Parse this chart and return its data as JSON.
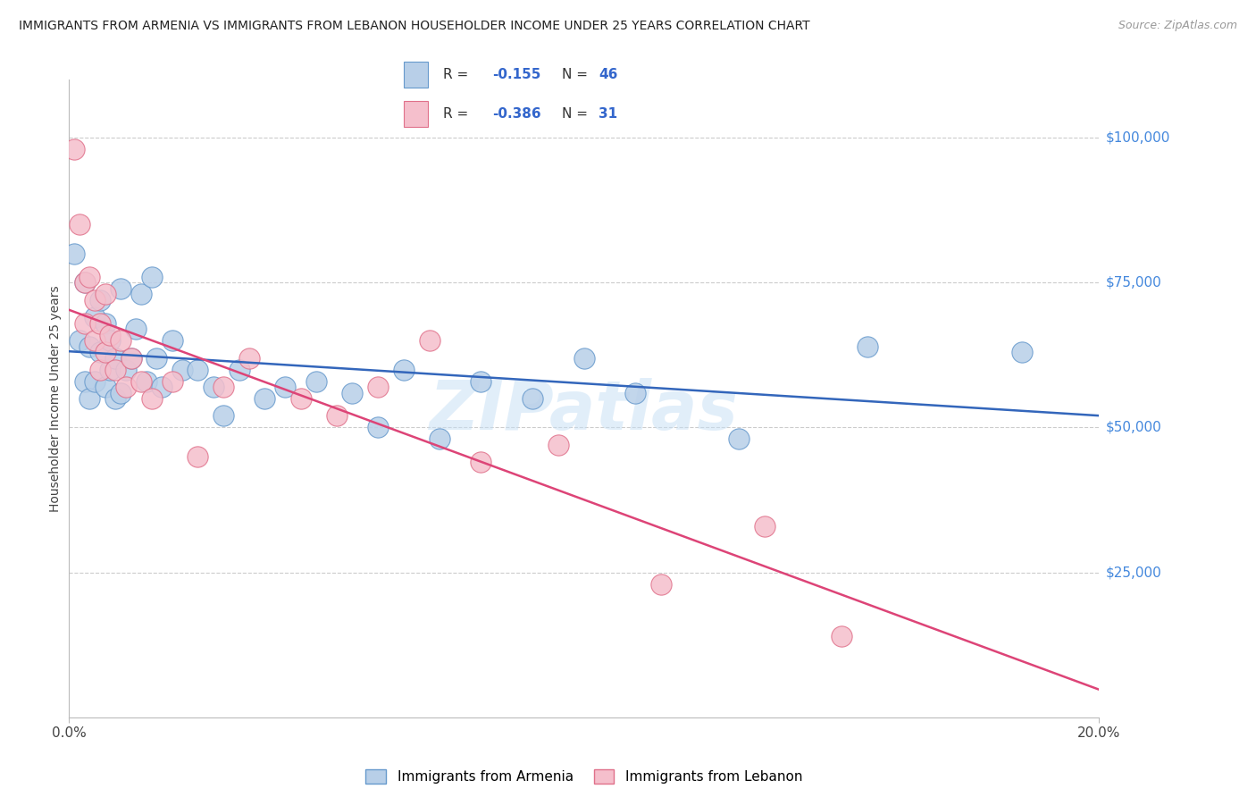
{
  "title": "IMMIGRANTS FROM ARMENIA VS IMMIGRANTS FROM LEBANON HOUSEHOLDER INCOME UNDER 25 YEARS CORRELATION CHART",
  "source": "Source: ZipAtlas.com",
  "ylabel": "Householder Income Under 25 years",
  "xlim": [
    0.0,
    0.2
  ],
  "ylim": [
    0,
    110000
  ],
  "yticks": [
    0,
    25000,
    50000,
    75000,
    100000
  ],
  "ytick_labels": [
    "",
    "$25,000",
    "$50,000",
    "$75,000",
    "$100,000"
  ],
  "background_color": "#ffffff",
  "grid_color": "#cccccc",
  "armenia_color": "#b8cfe8",
  "armenia_edge_color": "#6699cc",
  "lebanon_color": "#f5bfcc",
  "lebanon_edge_color": "#e0708a",
  "armenia_R": -0.155,
  "armenia_N": 46,
  "lebanon_R": -0.386,
  "lebanon_N": 31,
  "armenia_line_color": "#3366bb",
  "lebanon_line_color": "#dd4477",
  "armenia_x": [
    0.001,
    0.002,
    0.003,
    0.003,
    0.004,
    0.004,
    0.005,
    0.005,
    0.006,
    0.006,
    0.007,
    0.007,
    0.008,
    0.008,
    0.009,
    0.009,
    0.01,
    0.01,
    0.011,
    0.012,
    0.013,
    0.014,
    0.015,
    0.016,
    0.017,
    0.018,
    0.02,
    0.022,
    0.025,
    0.028,
    0.03,
    0.033,
    0.038,
    0.042,
    0.048,
    0.055,
    0.06,
    0.065,
    0.072,
    0.08,
    0.09,
    0.1,
    0.11,
    0.13,
    0.155,
    0.185
  ],
  "armenia_y": [
    80000,
    65000,
    75000,
    58000,
    64000,
    55000,
    69000,
    58000,
    72000,
    63000,
    68000,
    57000,
    65000,
    60000,
    62000,
    55000,
    74000,
    56000,
    60000,
    62000,
    67000,
    73000,
    58000,
    76000,
    62000,
    57000,
    65000,
    60000,
    60000,
    57000,
    52000,
    60000,
    55000,
    57000,
    58000,
    56000,
    50000,
    60000,
    48000,
    58000,
    55000,
    62000,
    56000,
    48000,
    64000,
    63000
  ],
  "lebanon_x": [
    0.001,
    0.002,
    0.003,
    0.003,
    0.004,
    0.005,
    0.005,
    0.006,
    0.006,
    0.007,
    0.007,
    0.008,
    0.009,
    0.01,
    0.011,
    0.012,
    0.014,
    0.016,
    0.02,
    0.025,
    0.03,
    0.035,
    0.045,
    0.052,
    0.06,
    0.07,
    0.08,
    0.095,
    0.115,
    0.135,
    0.15
  ],
  "lebanon_y": [
    98000,
    85000,
    75000,
    68000,
    76000,
    72000,
    65000,
    68000,
    60000,
    73000,
    63000,
    66000,
    60000,
    65000,
    57000,
    62000,
    58000,
    55000,
    58000,
    45000,
    57000,
    62000,
    55000,
    52000,
    57000,
    65000,
    44000,
    47000,
    23000,
    33000,
    14000
  ]
}
